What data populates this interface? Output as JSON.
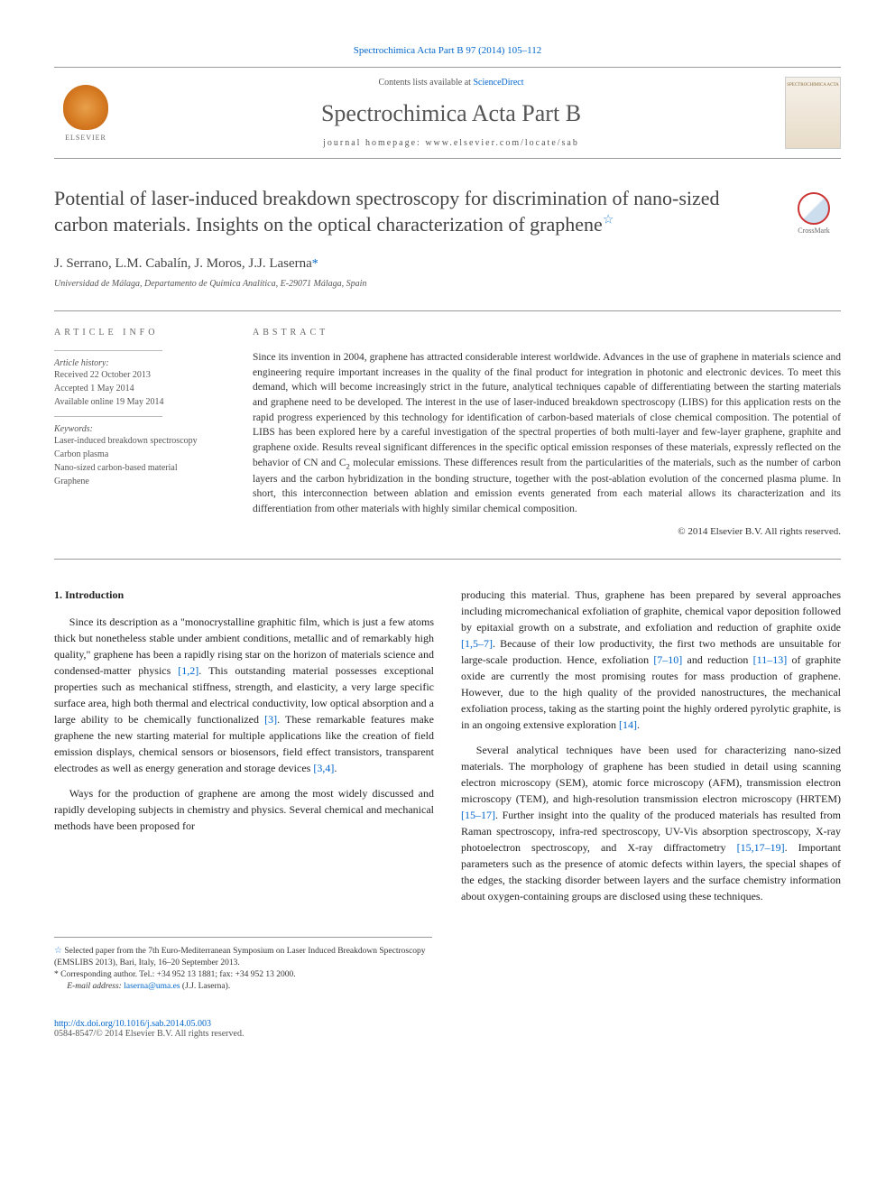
{
  "journal_ref_line": "Spectrochimica Acta Part B 97 (2014) 105–112",
  "header": {
    "contents_text": "Contents lists available at ",
    "contents_link": "ScienceDirect",
    "journal_name": "Spectrochimica Acta Part B",
    "homepage_label": "journal homepage: ",
    "homepage_url": "www.elsevier.com/locate/sab",
    "publisher_mark": "ELSEVIER",
    "cover_text": "SPECTROCHIMICA ACTA"
  },
  "crossmark_label": "CrossMark",
  "article": {
    "title": "Potential of laser-induced breakdown spectroscopy for discrimination of nano-sized carbon materials. Insights on the optical characterization of graphene",
    "title_footnote_marker": "☆",
    "authors": "J. Serrano, L.M. Cabalín, J. Moros, J.J. Laserna",
    "corr_marker": "*",
    "affiliation": "Universidad de Málaga, Departamento de Química Analítica, E-29071 Málaga, Spain"
  },
  "article_info": {
    "heading": "article info",
    "history_label": "Article history:",
    "received": "Received 22 October 2013",
    "accepted": "Accepted 1 May 2014",
    "online": "Available online 19 May 2014",
    "keywords_label": "Keywords:",
    "keywords": [
      "Laser-induced breakdown spectroscopy",
      "Carbon plasma",
      "Nano-sized carbon-based material",
      "Graphene"
    ]
  },
  "abstract": {
    "heading": "abstract",
    "text": "Since its invention in 2004, graphene has attracted considerable interest worldwide. Advances in the use of graphene in materials science and engineering require important increases in the quality of the final product for integration in photonic and electronic devices. To meet this demand, which will become increasingly strict in the future, analytical techniques capable of differentiating between the starting materials and graphene need to be developed. The interest in the use of laser-induced breakdown spectroscopy (LIBS) for this application rests on the rapid progress experienced by this technology for identification of carbon-based materials of close chemical composition. The potential of LIBS has been explored here by a careful investigation of the spectral properties of both multi-layer and few-layer graphene, graphite and graphene oxide. Results reveal significant differences in the specific optical emission responses of these materials, expressly reflected on the behavior of CN and C",
    "text_sub": "2",
    "text_tail": " molecular emissions. These differences result from the particularities of the materials, such as the number of carbon layers and the carbon hybridization in the bonding structure, together with the post-ablation evolution of the concerned plasma plume. In short, this interconnection between ablation and emission events generated from each material allows its characterization and its differentiation from other materials with highly similar chemical composition.",
    "copyright": "© 2014 Elsevier B.V. All rights reserved."
  },
  "body": {
    "section_heading": "1. Introduction",
    "left_paragraphs": [
      {
        "text_pre": "Since its description as a \"monocrystalline graphitic film, which is just a few atoms thick but nonetheless stable under ambient conditions, metallic and of remarkably high quality,\" graphene has been a rapidly rising star on the horizon of materials science and condensed-matter physics ",
        "ref": "[1,2]",
        "text_post": ". This outstanding material possesses exceptional properties such as mechanical stiffness, strength, and elasticity, a very large specific surface area, high both thermal and electrical conductivity, low optical absorption and a large ability to be chemically functionalized ",
        "ref2": "[3]",
        "text_tail": ". These remarkable features make graphene the new starting material for multiple applications like the creation of field emission displays, chemical sensors or biosensors, field effect transistors, transparent electrodes as well as energy generation and storage devices ",
        "ref3": "[3,4]",
        "text_end": "."
      },
      {
        "text_pre": "Ways for the production of graphene are among the most widely discussed and rapidly developing subjects in chemistry and physics. Several chemical and mechanical methods have been proposed for",
        "ref": "",
        "text_post": "",
        "ref2": "",
        "text_tail": "",
        "ref3": "",
        "text_end": ""
      }
    ],
    "right_paragraphs": [
      {
        "text_pre": "producing this material. Thus, graphene has been prepared by several approaches including micromechanical exfoliation of graphite, chemical vapor deposition followed by epitaxial growth on a substrate, and exfoliation and reduction of graphite oxide ",
        "ref": "[1,5–7]",
        "text_post": ". Because of their low productivity, the first two methods are unsuitable for large-scale production. Hence, exfoliation ",
        "ref2": "[7–10]",
        "text_tail": " and reduction ",
        "ref3": "[11–13]",
        "text_end": " of graphite oxide are currently the most promising routes for mass production of graphene. However, due to the high quality of the provided nanostructures, the mechanical exfoliation process, taking as the starting point the highly ordered pyrolytic graphite, is in an ongoing extensive exploration ",
        "ref4": "[14]",
        "text_final": "."
      },
      {
        "text_pre": "Several analytical techniques have been used for characterizing nano-sized materials. The morphology of graphene has been studied in detail using scanning electron microscopy (SEM), atomic force microscopy (AFM), transmission electron microscopy (TEM), and high-resolution transmission electron microscopy (HRTEM) ",
        "ref": "[15–17]",
        "text_post": ". Further insight into the quality of the produced materials has resulted from Raman spectroscopy, infra-red spectroscopy, UV-Vis absorption spectroscopy, X-ray photoelectron spectroscopy, and X-ray diffractometry ",
        "ref2": "[15,17–19]",
        "text_tail": ". Important parameters such as the presence of atomic defects within layers, the special shapes of the edges, the stacking disorder between layers and the surface chemistry information about oxygen-containing groups are disclosed using these techniques.",
        "ref3": "",
        "text_end": "",
        "ref4": "",
        "text_final": ""
      }
    ]
  },
  "footnotes": {
    "note1_marker": "☆",
    "note1_text": "Selected paper from the 7th Euro-Mediterranean Symposium on Laser Induced Breakdown Spectroscopy (EMSLIBS 2013), Bari, Italy, 16–20 September 2013.",
    "note2_marker": "*",
    "note2_text": "Corresponding author. Tel.: +34 952 13 1881; fax: +34 952 13 2000.",
    "email_label": "E-mail address: ",
    "email": "laserna@uma.es",
    "email_tail": " (J.J. Laserna)."
  },
  "doi": {
    "link": "http://dx.doi.org/10.1016/j.sab.2014.05.003",
    "issn_line": "0584-8547/© 2014 Elsevier B.V. All rights reserved."
  },
  "colors": {
    "link": "#0066cc",
    "text": "#333333",
    "rule": "#999999"
  }
}
